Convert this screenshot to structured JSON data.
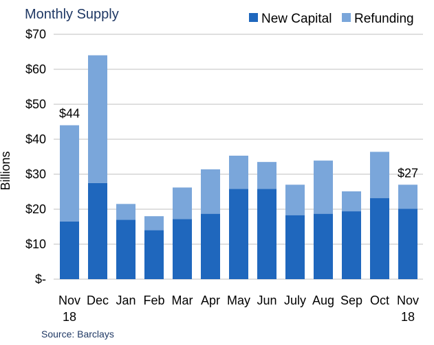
{
  "chart_data": {
    "type": "bar",
    "stacked": true,
    "title": "Monthly Supply",
    "ylabel": "Billions",
    "xlabel": "",
    "ylim": [
      0,
      70
    ],
    "yticks": [
      0,
      10,
      20,
      30,
      40,
      50,
      60,
      70
    ],
    "ytick_labels": [
      "$-",
      "$10",
      "$20",
      "$30",
      "$40",
      "$50",
      "$60",
      "$70"
    ],
    "grid": true,
    "legend_position": "top-right",
    "categories": [
      [
        "Nov",
        "18"
      ],
      [
        "Dec"
      ],
      [
        "Jan"
      ],
      [
        "Feb"
      ],
      [
        "Mar"
      ],
      [
        "Apr"
      ],
      [
        "May"
      ],
      [
        "Jun"
      ],
      [
        "July"
      ],
      [
        "Aug"
      ],
      [
        "Sep"
      ],
      [
        "Oct"
      ],
      [
        "Nov",
        "18"
      ]
    ],
    "series": [
      {
        "name": "New Capital",
        "color": "#1f67bd",
        "values": [
          16.5,
          27.5,
          17,
          14,
          17.2,
          18.7,
          25.8,
          25.8,
          18.3,
          18.7,
          19.4,
          23.2,
          20.1
        ]
      },
      {
        "name": "Refunding",
        "color": "#7aa6da",
        "values": [
          27.5,
          36.5,
          4.5,
          4,
          9,
          12.7,
          9.5,
          7.7,
          8.7,
          15.2,
          5.7,
          13.2,
          6.9
        ]
      }
    ],
    "annotations": [
      {
        "category_index": 0,
        "text": "$44"
      },
      {
        "category_index": 12,
        "text": "$27"
      }
    ],
    "source": "Source: Barclays"
  }
}
